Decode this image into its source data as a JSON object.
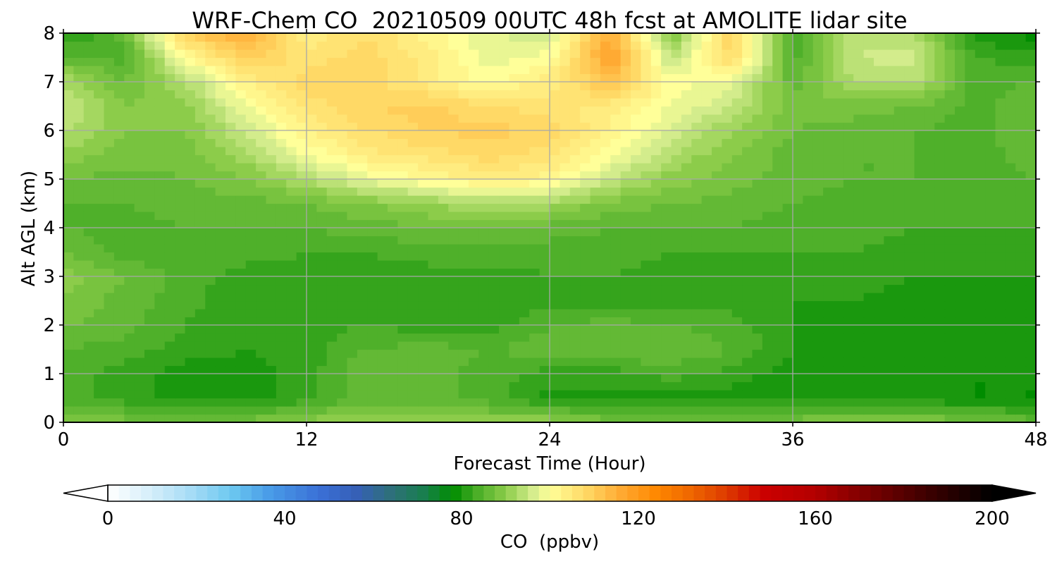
{
  "chart_data": {
    "type": "heatmap",
    "title": "WRF-Chem CO  20210509 00UTC 48h fcst at AMOLITE lidar site",
    "xlabel": "Forecast Time (Hour)",
    "ylabel": "Alt AGL (km)",
    "xlim": [
      0,
      48
    ],
    "ylim": [
      0,
      8
    ],
    "xticks": [
      0,
      12,
      24,
      36,
      48
    ],
    "yticks": [
      0,
      1,
      2,
      3,
      4,
      5,
      6,
      7,
      8
    ],
    "grid": true,
    "x": [
      0,
      3,
      6,
      9,
      12,
      15,
      18,
      21,
      24,
      27,
      30,
      33,
      36,
      39,
      42,
      45,
      48
    ],
    "y": [
      0,
      0.5,
      1,
      1.5,
      2,
      2.5,
      3,
      3.5,
      4,
      4.5,
      5,
      5.5,
      6,
      6.5,
      7,
      7.5,
      8
    ],
    "z": [
      [
        88,
        88,
        88,
        88,
        90,
        91,
        90,
        90,
        91,
        88,
        88,
        88,
        88,
        90,
        89,
        88,
        86
      ],
      [
        84,
        82,
        80,
        80,
        82,
        86,
        86,
        84,
        80,
        80,
        80,
        80,
        80,
        80,
        80,
        79,
        79
      ],
      [
        84,
        82,
        80,
        80,
        82,
        87,
        86,
        84,
        82,
        82,
        84,
        82,
        80,
        80,
        80,
        79,
        79
      ],
      [
        85,
        84,
        82,
        81,
        82,
        85,
        86,
        85,
        86,
        87,
        87,
        85,
        81,
        80,
        80,
        80,
        80
      ],
      [
        87,
        86,
        83,
        81,
        82,
        83,
        82,
        82,
        85,
        86,
        85,
        84,
        81,
        80,
        80,
        80,
        80
      ],
      [
        89,
        86,
        84,
        81,
        81,
        82,
        82,
        81,
        82,
        82,
        82,
        82,
        81,
        81,
        80,
        80,
        80
      ],
      [
        90,
        87,
        84,
        82,
        82,
        82,
        82,
        82,
        83,
        83,
        82,
        82,
        82,
        82,
        81,
        81,
        81
      ],
      [
        87,
        84,
        84,
        84,
        83,
        83,
        84,
        84,
        84,
        84,
        83,
        83,
        83,
        83,
        82,
        82,
        82
      ],
      [
        85,
        84,
        85,
        85,
        85,
        86,
        87,
        87,
        86,
        85,
        85,
        85,
        84,
        84,
        83,
        83,
        83
      ],
      [
        85,
        85,
        86,
        86,
        87,
        89,
        91,
        93,
        92,
        88,
        87,
        86,
        85,
        84,
        84,
        84,
        84
      ],
      [
        87,
        86,
        87,
        89,
        93,
        98,
        101,
        104,
        102,
        95,
        90,
        88,
        86,
        85,
        85,
        84,
        85
      ],
      [
        90,
        88,
        88,
        92,
        99,
        104,
        106,
        108,
        106,
        100,
        93,
        89,
        86,
        85,
        85,
        84,
        86
      ],
      [
        94,
        89,
        89,
        95,
        103,
        107,
        109,
        110,
        108,
        103,
        96,
        91,
        87,
        86,
        85,
        84,
        87
      ],
      [
        95,
        89,
        90,
        99,
        106,
        109,
        110,
        107,
        106,
        104,
        99,
        95,
        88,
        88,
        87,
        84,
        87
      ],
      [
        93,
        87,
        93,
        103,
        108,
        108,
        104,
        100,
        104,
        112,
        100,
        98,
        86,
        93,
        94,
        84,
        85
      ],
      [
        86,
        84,
        100,
        110,
        106,
        108,
        104,
        98,
        100,
        118,
        94,
        108,
        84,
        95,
        96,
        83,
        82
      ],
      [
        80,
        86,
        110,
        116,
        103,
        107,
        102,
        97,
        96,
        116,
        88,
        109,
        83,
        94,
        93,
        80,
        78
      ]
    ],
    "colorbar": {
      "label": "CO  (ppbv)",
      "min": 0,
      "max": 200,
      "ticks": [
        0,
        40,
        80,
        120,
        160,
        200
      ],
      "extend": "both",
      "stops": [
        {
          "v": 0,
          "c": "#ffffff"
        },
        {
          "v": 10,
          "c": "#d4eefa"
        },
        {
          "v": 20,
          "c": "#9fd9f5"
        },
        {
          "v": 28,
          "c": "#6cc8f0"
        },
        {
          "v": 36,
          "c": "#4a9ee8"
        },
        {
          "v": 48,
          "c": "#3a6fd6"
        },
        {
          "v": 56,
          "c": "#3660b8"
        },
        {
          "v": 64,
          "c": "#2e6f7a"
        },
        {
          "v": 72,
          "c": "#17804a"
        },
        {
          "v": 78,
          "c": "#008c00"
        },
        {
          "v": 84,
          "c": "#4fb02a"
        },
        {
          "v": 90,
          "c": "#8ccc4a"
        },
        {
          "v": 96,
          "c": "#d3ec8c"
        },
        {
          "v": 100,
          "c": "#ffff99"
        },
        {
          "v": 108,
          "c": "#ffd966"
        },
        {
          "v": 116,
          "c": "#ffaa33"
        },
        {
          "v": 124,
          "c": "#ff8800"
        },
        {
          "v": 132,
          "c": "#ee6600"
        },
        {
          "v": 140,
          "c": "#dd3a00"
        },
        {
          "v": 148,
          "c": "#cc0000"
        },
        {
          "v": 160,
          "c": "#b30000"
        },
        {
          "v": 172,
          "c": "#7a0000"
        },
        {
          "v": 186,
          "c": "#3a0000"
        },
        {
          "v": 200,
          "c": "#000000"
        }
      ]
    }
  }
}
